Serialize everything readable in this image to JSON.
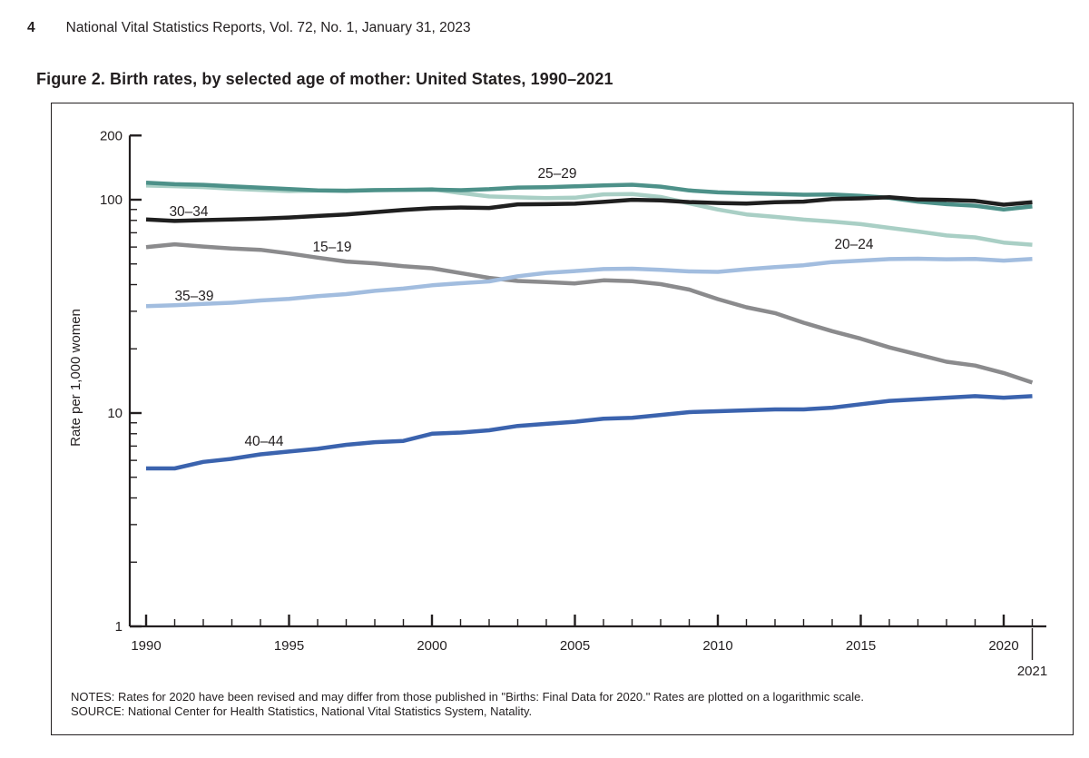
{
  "page": {
    "page_number": "4",
    "journal_line": "National Vital Statistics Reports, Vol. 72, No. 1, January 31, 2023",
    "figure_title": "Figure 2. Birth rates, by selected age of mother: United States, 1990–2021",
    "notes_line1": "NOTES: Rates for 2020 have been revised and may differ from those published in \"Births: Final Data for 2020.\" Rates are plotted on a logarithmic scale.",
    "notes_line2": "SOURCE: National Center for Health Statistics, National Vital Statistics System, Natality."
  },
  "chart_data": {
    "type": "line",
    "title": "Figure 2. Birth rates, by selected age of mother: United States, 1990–2021",
    "xlabel": "",
    "ylabel": "Rate per 1,000 women",
    "y_scale": "log",
    "ylim": [
      1,
      200
    ],
    "y_ticks": [
      1,
      10,
      100,
      200
    ],
    "y_minor_ticks": [
      2,
      3,
      4,
      5,
      6,
      7,
      8,
      9,
      20,
      30,
      40,
      50,
      60,
      70,
      80,
      90
    ],
    "x_ticks": [
      1990,
      1995,
      2000,
      2005,
      2010,
      2015,
      2020
    ],
    "x_end_annotation": "2021",
    "legend_position": "inline-labels",
    "grid": false,
    "ink_color": "#231f20",
    "x": [
      1990,
      1991,
      1992,
      1993,
      1994,
      1995,
      1996,
      1997,
      1998,
      1999,
      2000,
      2001,
      2002,
      2003,
      2004,
      2005,
      2006,
      2007,
      2008,
      2009,
      2010,
      2011,
      2012,
      2013,
      2014,
      2015,
      2016,
      2017,
      2018,
      2019,
      2020,
      2021
    ],
    "series": [
      {
        "name": "15–19",
        "color": "#8b8b8d",
        "values": [
          59.9,
          61.8,
          60.3,
          59.0,
          58.2,
          56.0,
          53.5,
          51.3,
          50.3,
          48.8,
          47.7,
          45.3,
          43.0,
          41.6,
          41.1,
          40.5,
          41.9,
          41.5,
          40.2,
          37.9,
          34.2,
          31.3,
          29.4,
          26.5,
          24.2,
          22.3,
          20.3,
          18.8,
          17.4,
          16.7,
          15.4,
          13.9
        ]
      },
      {
        "name": "20–24",
        "color": "#a9cfc5",
        "values": [
          116.5,
          115.7,
          114.6,
          112.6,
          111.1,
          109.8,
          110.4,
          110.4,
          111.2,
          111.0,
          112.0,
          107.5,
          103.6,
          102.6,
          101.7,
          102.2,
          105.9,
          106.3,
          103.0,
          96.2,
          90.0,
          85.3,
          83.1,
          80.7,
          79.0,
          76.8,
          73.8,
          71.0,
          68.0,
          66.6,
          63.0,
          61.5
        ]
      },
      {
        "name": "40–44",
        "color": "#3b63ae",
        "values": [
          5.5,
          5.5,
          5.9,
          6.1,
          6.4,
          6.6,
          6.8,
          7.1,
          7.3,
          7.4,
          8.0,
          8.1,
          8.3,
          8.7,
          8.9,
          9.1,
          9.4,
          9.5,
          9.8,
          10.1,
          10.2,
          10.3,
          10.4,
          10.4,
          10.6,
          11.0,
          11.4,
          11.6,
          11.8,
          12.0,
          11.8,
          12.0
        ]
      },
      {
        "name": "35–39",
        "color": "#a2bddf",
        "values": [
          31.7,
          32.0,
          32.5,
          32.9,
          33.7,
          34.3,
          35.3,
          36.1,
          37.4,
          38.3,
          39.7,
          40.6,
          41.4,
          43.8,
          45.4,
          46.3,
          47.3,
          47.5,
          46.9,
          46.1,
          45.9,
          47.2,
          48.3,
          49.3,
          51.0,
          51.8,
          52.7,
          52.9,
          52.6,
          52.8,
          51.8,
          52.8
        ]
      },
      {
        "name": "25–29",
        "color": "#4d9189",
        "values": [
          120.2,
          118.2,
          117.4,
          115.5,
          113.9,
          112.2,
          110.5,
          110.0,
          110.8,
          111.3,
          111.5,
          110.8,
          112.0,
          114.0,
          114.5,
          115.5,
          116.7,
          117.5,
          115.1,
          110.5,
          108.3,
          107.2,
          106.5,
          105.5,
          105.8,
          104.3,
          102.1,
          98.0,
          95.3,
          93.7,
          90.0,
          93.0
        ]
      },
      {
        "name": "30–34",
        "color": "#1f1f1f",
        "values": [
          80.8,
          79.5,
          80.2,
          80.8,
          81.5,
          82.5,
          83.9,
          85.2,
          87.4,
          89.6,
          91.2,
          91.9,
          91.5,
          95.1,
          95.3,
          95.8,
          97.7,
          99.9,
          99.3,
          97.5,
          96.5,
          96.0,
          97.3,
          98.0,
          100.8,
          101.5,
          102.7,
          100.3,
          99.7,
          98.7,
          94.8,
          97.3
        ]
      }
    ]
  }
}
